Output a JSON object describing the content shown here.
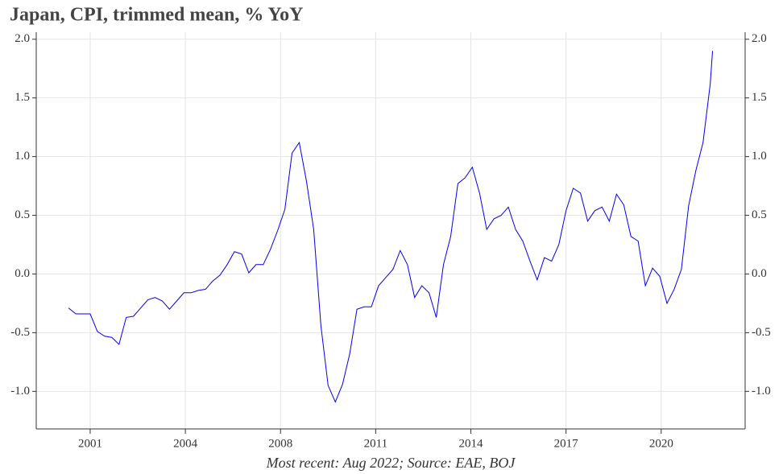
{
  "chart_data": {
    "type": "line",
    "title": "Japan, CPI, trimmed mean, % YoY",
    "footnote": "Most recent: Aug 2022; Source: EAE, BOJ",
    "x": [
      2000.25,
      2000.5,
      2000.75,
      2001.0,
      2001.25,
      2001.5,
      2001.75,
      2002.0,
      2002.25,
      2002.5,
      2002.75,
      2003.0,
      2003.25,
      2003.5,
      2003.75,
      2004.0,
      2004.25,
      2004.5,
      2004.75,
      2005.0,
      2005.25,
      2005.5,
      2005.75,
      2006.0,
      2006.25,
      2006.5,
      2006.75,
      2007.0,
      2007.25,
      2007.5,
      2007.75,
      2008.0,
      2008.25,
      2008.5,
      2008.75,
      2009.0,
      2009.25,
      2009.5,
      2009.75,
      2010.0,
      2010.25,
      2010.5,
      2010.75,
      2011.0,
      2011.25,
      2011.5,
      2011.75,
      2012.0,
      2012.25,
      2012.5,
      2012.75,
      2013.0,
      2013.25,
      2013.5,
      2013.75,
      2014.0,
      2014.25,
      2014.5,
      2014.75,
      2015.0,
      2015.25,
      2015.5,
      2015.75,
      2016.0,
      2016.25,
      2016.5,
      2016.75,
      2017.0,
      2017.25,
      2017.5,
      2017.75,
      2018.0,
      2018.25,
      2018.5,
      2018.75,
      2019.0,
      2019.25,
      2019.5,
      2019.75,
      2020.0,
      2020.25,
      2020.5,
      2020.75,
      2021.0,
      2021.25,
      2021.5,
      2021.75,
      2022.0,
      2022.25,
      2022.5,
      2022.58
    ],
    "series": [
      {
        "name": "Trimmed mean",
        "color": "#0000ee",
        "values": [
          -0.29,
          -0.34,
          -0.34,
          -0.34,
          -0.49,
          -0.53,
          -0.54,
          -0.6,
          -0.37,
          -0.36,
          -0.29,
          -0.22,
          -0.2,
          -0.23,
          -0.3,
          -0.23,
          -0.16,
          -0.16,
          -0.14,
          -0.13,
          -0.06,
          -0.01,
          0.08,
          0.19,
          0.17,
          0.01,
          0.08,
          0.08,
          0.21,
          0.37,
          0.55,
          1.03,
          1.12,
          0.79,
          0.38,
          -0.44,
          -0.95,
          -1.09,
          -0.94,
          -0.68,
          -0.3,
          -0.28,
          -0.28,
          -0.1,
          -0.03,
          0.04,
          0.2,
          0.08,
          -0.2,
          -0.1,
          -0.16,
          -0.37,
          0.08,
          0.32,
          0.77,
          0.82,
          0.91,
          0.69,
          0.38,
          0.47,
          0.5,
          0.57,
          0.38,
          0.28,
          0.11,
          -0.05,
          0.14,
          0.11,
          0.25,
          0.54,
          0.73,
          0.69,
          0.45,
          0.54,
          0.57,
          0.45,
          0.68,
          0.59,
          0.32,
          0.28,
          -0.1,
          0.05,
          -0.02,
          -0.25,
          -0.13,
          0.04,
          0.58,
          0.88,
          1.12,
          1.62,
          1.9
        ]
      }
    ],
    "xlim": [
      1999.13,
      2023.71
    ],
    "xticks": [
      {
        "value": 2001.0,
        "label": "2001"
      },
      {
        "value": 2004.3,
        "label": "2004"
      },
      {
        "value": 2007.6,
        "label": "2008"
      },
      {
        "value": 2010.9,
        "label": "2011"
      },
      {
        "value": 2014.2,
        "label": "2014"
      },
      {
        "value": 2017.5,
        "label": "2017"
      },
      {
        "value": 2020.8,
        "label": "2020"
      }
    ],
    "ylim": [
      -1.32,
      2.06
    ],
    "yticks": [
      {
        "value": -1.0,
        "label": "-1.0"
      },
      {
        "value": -0.5,
        "label": "-0.5"
      },
      {
        "value": 0.0,
        "label": "0.0"
      },
      {
        "value": 0.5,
        "label": "0.5"
      },
      {
        "value": 1.0,
        "label": "1.0"
      },
      {
        "value": 1.5,
        "label": "1.5"
      },
      {
        "value": 2.0,
        "label": "2.0"
      }
    ],
    "grid": true
  }
}
